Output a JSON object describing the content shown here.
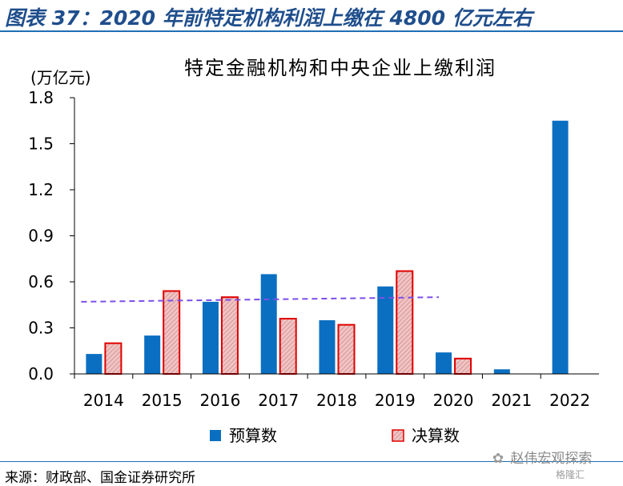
{
  "figure": {
    "title": "图表 37：2020 年前特定机构利润上缴在 4800 亿元左右",
    "source": "来源：财政部、国金证券研究所",
    "watermark": "赵伟宏观探索",
    "watermark_sub": "格隆汇"
  },
  "chart_data": {
    "type": "bar",
    "title": "特定金融机构和中央企业上缴利润",
    "ylabel": "(万亿元)",
    "xlabel": "",
    "categories": [
      "2014",
      "2015",
      "2016",
      "2017",
      "2018",
      "2019",
      "2020",
      "2021",
      "2022"
    ],
    "series": [
      {
        "name": "预算数",
        "color": "#0b6fc1",
        "pattern": "solid",
        "values": [
          0.13,
          0.25,
          0.47,
          0.65,
          0.35,
          0.57,
          0.14,
          0.03,
          1.65
        ]
      },
      {
        "name": "决算数",
        "color": "#e8a8a8",
        "edge": "#e00000",
        "pattern": "hatched",
        "values": [
          0.2,
          0.54,
          0.5,
          0.36,
          0.32,
          0.67,
          0.1,
          null,
          null
        ]
      }
    ],
    "average_line": {
      "color": "#7b4fe8",
      "style": "dashed",
      "from": "2014",
      "to": "2020",
      "start": 0.47,
      "end": 0.5
    },
    "ylim": [
      0,
      1.8
    ],
    "yticks": [
      "0.0",
      "0.3",
      "0.6",
      "0.9",
      "1.2",
      "1.5",
      "1.8"
    ],
    "legend_position": "bottom",
    "grid": false
  }
}
